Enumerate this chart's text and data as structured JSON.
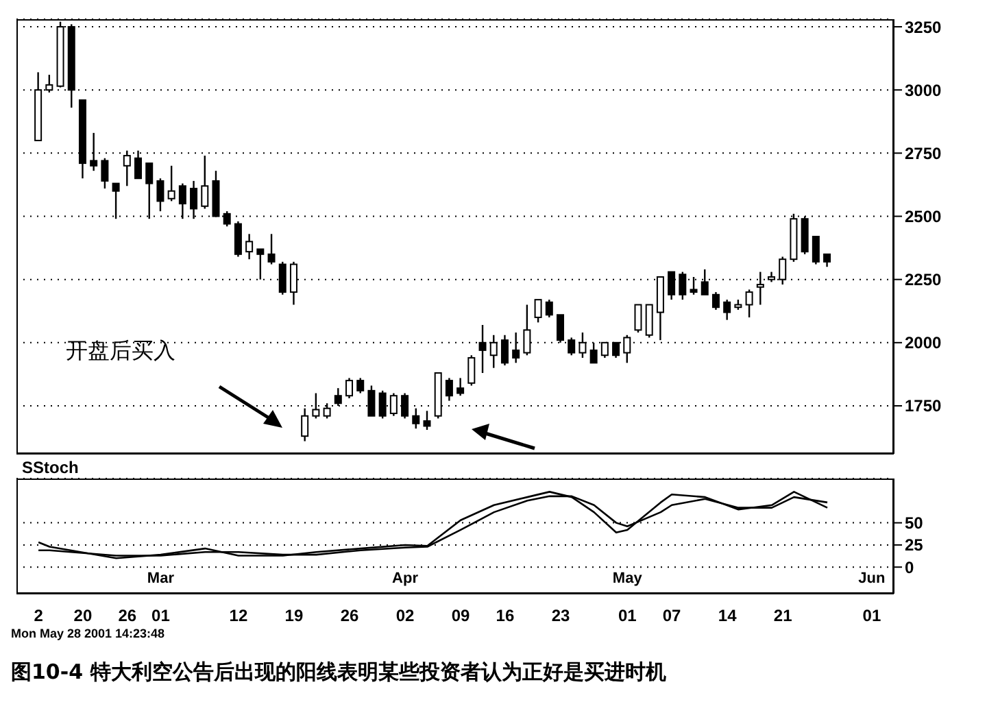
{
  "chart_data": [
    {
      "type": "candlestick",
      "color": "#000000",
      "grid": "y",
      "tick_labels": "y",
      "categories": [
        "2",
        null,
        null,
        null,
        "20",
        null,
        null,
        null,
        "26",
        null,
        null,
        "01",
        null,
        null,
        null,
        null,
        null,
        null,
        "12",
        null,
        null,
        null,
        null,
        "19",
        null,
        null,
        null,
        null,
        "26",
        null,
        null,
        null,
        null,
        "02",
        null,
        null,
        null,
        null,
        "09",
        null,
        null,
        null,
        "16",
        null,
        null,
        null,
        null,
        "23",
        null,
        null,
        null,
        null,
        null,
        "01",
        null,
        null,
        null,
        "07",
        null,
        null,
        null,
        null,
        "14",
        null,
        null,
        null,
        null,
        "21",
        null,
        null,
        null,
        null,
        null,
        null,
        null,
        "01"
      ],
      "ylim": [
        1560,
        3280
      ],
      "yticks": [
        1750,
        2000,
        2250,
        2500,
        2750,
        3000,
        3250
      ],
      "annotations": [
        "开盘后买入"
      ],
      "ohlc": [
        [
          2800,
          3070,
          2800,
          3000
        ],
        [
          3000,
          3060,
          2990,
          3020
        ],
        [
          3015,
          3270,
          3010,
          3250
        ],
        [
          3250,
          3260,
          2930,
          3000
        ],
        [
          2960,
          2960,
          2650,
          2710
        ],
        [
          2720,
          2830,
          2680,
          2700
        ],
        [
          2720,
          2730,
          2610,
          2640
        ],
        [
          2630,
          2630,
          2490,
          2600
        ],
        [
          2700,
          2760,
          2620,
          2740
        ],
        [
          2730,
          2760,
          2650,
          2650
        ],
        [
          2710,
          2710,
          2490,
          2630
        ],
        [
          2640,
          2650,
          2520,
          2560
        ],
        [
          2570,
          2700,
          2560,
          2600
        ],
        [
          2620,
          2630,
          2490,
          2550
        ],
        [
          2610,
          2640,
          2490,
          2530
        ],
        [
          2540,
          2740,
          2530,
          2620
        ],
        [
          2640,
          2680,
          2500,
          2500
        ],
        [
          2510,
          2520,
          2460,
          2470
        ],
        [
          2470,
          2480,
          2340,
          2350
        ],
        [
          2360,
          2430,
          2330,
          2400
        ],
        [
          2370,
          2370,
          2250,
          2350
        ],
        [
          2350,
          2430,
          2310,
          2320
        ],
        [
          2310,
          2320,
          2190,
          2200
        ],
        [
          2200,
          2320,
          2150,
          2310
        ],
        [
          1630,
          1740,
          1610,
          1710
        ],
        [
          1710,
          1800,
          1700,
          1735
        ],
        [
          1710,
          1760,
          1700,
          1740
        ],
        [
          1790,
          1820,
          1750,
          1760
        ],
        [
          1790,
          1860,
          1780,
          1850
        ],
        [
          1850,
          1860,
          1800,
          1810
        ],
        [
          1810,
          1830,
          1710,
          1710
        ],
        [
          1800,
          1810,
          1700,
          1710
        ],
        [
          1720,
          1800,
          1710,
          1790
        ],
        [
          1790,
          1800,
          1700,
          1710
        ],
        [
          1710,
          1740,
          1660,
          1680
        ],
        [
          1690,
          1730,
          1655,
          1670
        ],
        [
          1710,
          1880,
          1700,
          1880
        ],
        [
          1850,
          1860,
          1770,
          1790
        ],
        [
          1820,
          1860,
          1790,
          1800
        ],
        [
          1840,
          1950,
          1830,
          1940
        ],
        [
          2000,
          2070,
          1880,
          1970
        ],
        [
          1950,
          2030,
          1900,
          2000
        ],
        [
          2010,
          2030,
          1910,
          1920
        ],
        [
          1970,
          2040,
          1920,
          1940
        ],
        [
          1960,
          2150,
          1950,
          2050
        ],
        [
          2100,
          2170,
          2080,
          2170
        ],
        [
          2160,
          2170,
          2100,
          2110
        ],
        [
          2110,
          2110,
          2000,
          2010
        ],
        [
          2010,
          2020,
          1950,
          1960
        ],
        [
          1960,
          2040,
          1940,
          2000
        ],
        [
          1970,
          2000,
          1920,
          1920
        ],
        [
          1950,
          2000,
          1940,
          2000
        ],
        [
          2000,
          2000,
          1940,
          1950
        ],
        [
          1960,
          2030,
          1920,
          2020
        ],
        [
          2050,
          2150,
          2040,
          2150
        ],
        [
          2030,
          2150,
          2020,
          2150
        ],
        [
          2120,
          2260,
          2010,
          2260
        ],
        [
          2280,
          2280,
          2170,
          2190
        ],
        [
          2270,
          2280,
          2170,
          2190
        ],
        [
          2210,
          2260,
          2190,
          2200
        ],
        [
          2240,
          2290,
          2190,
          2190
        ],
        [
          2190,
          2200,
          2130,
          2140
        ],
        [
          2160,
          2170,
          2090,
          2120
        ],
        [
          2140,
          2170,
          2130,
          2150
        ],
        [
          2150,
          2210,
          2100,
          2200
        ],
        [
          2220,
          2280,
          2150,
          2230
        ],
        [
          2250,
          2280,
          2240,
          2260
        ],
        [
          2250,
          2340,
          2230,
          2330
        ],
        [
          2330,
          2510,
          2320,
          2490
        ],
        [
          2490,
          2500,
          2350,
          2360
        ],
        [
          2420,
          2420,
          2310,
          2320
        ],
        [
          2350,
          2350,
          2300,
          2320
        ],
        null,
        null,
        null,
        null
      ]
    },
    {
      "type": "line",
      "title": "SStoch",
      "grid": "y",
      "marker": "none",
      "line_style": "solid",
      "categories": [
        "2",
        null,
        null,
        null,
        "20",
        null,
        null,
        null,
        "26",
        null,
        null,
        "Mar 01",
        null,
        null,
        null,
        null,
        null,
        null,
        "12",
        null,
        null,
        null,
        null,
        "19",
        null,
        null,
        null,
        null,
        "26",
        null,
        null,
        null,
        null,
        "Apr 02",
        null,
        null,
        null,
        null,
        "09",
        null,
        null,
        null,
        "16",
        null,
        null,
        null,
        null,
        "23",
        null,
        null,
        null,
        null,
        null,
        "May 01",
        null,
        null,
        null,
        "07",
        null,
        null,
        null,
        null,
        "14",
        null,
        null,
        null,
        null,
        "21",
        null,
        null,
        null,
        null,
        null,
        null,
        null,
        "Jun 01"
      ],
      "ylim": [
        -30,
        100
      ],
      "yticks": [
        0,
        25,
        50
      ],
      "annotations": [
        "Mon May 28 2001 14:23:48",
        "图10-4   特大利空公告后出现的阳线表明某些投资者认为正好是买进时机"
      ],
      "series": [
        {
          "color": "#000000",
          "values": [
            28,
            23,
            null,
            null,
            null,
            null,
            null,
            10,
            null,
            null,
            null,
            14,
            null,
            null,
            null,
            21,
            null,
            null,
            13,
            null,
            null,
            null,
            13,
            null,
            null,
            17,
            null,
            null,
            null,
            21,
            null,
            null,
            null,
            25,
            null,
            24,
            null,
            null,
            53,
            null,
            null,
            70,
            null,
            null,
            79,
            null,
            85,
            null,
            79,
            null,
            62,
            null,
            39,
            42,
            null,
            null,
            73,
            82,
            null,
            null,
            79,
            null,
            null,
            65,
            null,
            null,
            70,
            null,
            85,
            null,
            null,
            67,
            null,
            null,
            null,
            null
          ]
        },
        {
          "color": "#000000",
          "values": [
            19,
            19,
            null,
            null,
            null,
            null,
            null,
            13,
            null,
            null,
            null,
            13,
            null,
            null,
            null,
            17,
            null,
            null,
            17,
            null,
            null,
            null,
            14,
            null,
            null,
            14,
            null,
            null,
            null,
            19,
            null,
            null,
            null,
            22,
            null,
            23,
            null,
            null,
            42,
            null,
            null,
            62,
            null,
            null,
            75,
            null,
            80,
            null,
            80,
            null,
            70,
            null,
            50,
            46,
            null,
            null,
            62,
            70,
            null,
            null,
            77,
            null,
            null,
            67,
            null,
            null,
            67,
            null,
            79,
            null,
            null,
            73,
            null,
            null,
            null,
            null
          ]
        }
      ]
    }
  ]
}
